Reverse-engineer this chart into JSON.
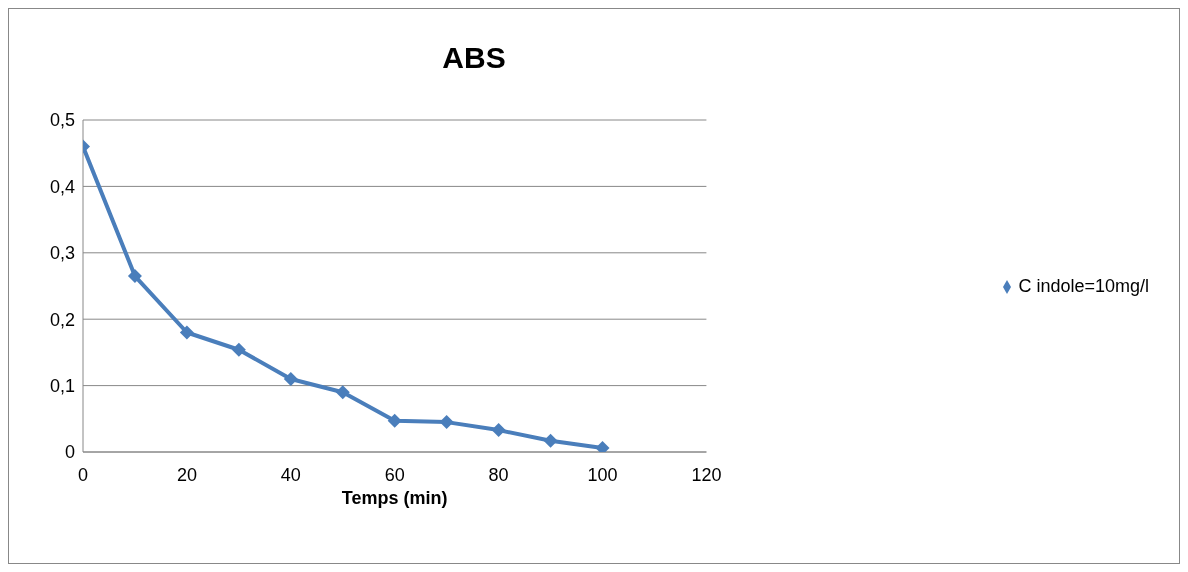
{
  "chart_data": {
    "type": "line",
    "title": "ABS",
    "xlabel": "Temps (min)",
    "x": [
      0,
      10,
      20,
      30,
      40,
      50,
      60,
      70,
      80,
      90,
      100
    ],
    "series": [
      {
        "name": "C indole=10mg/l",
        "color": "#4a7ebb",
        "values": [
          0.46,
          0.265,
          0.18,
          0.154,
          0.11,
          0.09,
          0.047,
          0.045,
          0.033,
          0.017,
          0.006
        ]
      }
    ],
    "xlim": [
      0,
      120
    ],
    "xticks": [
      0,
      20,
      40,
      60,
      80,
      100,
      120
    ],
    "ylim": [
      0,
      0.5
    ],
    "yticks": [
      0,
      {
        "value": 0.1,
        "label": "0,1"
      },
      {
        "value": 0.2,
        "label": "0,2"
      },
      {
        "value": 0.3,
        "label": "0,3"
      },
      {
        "value": 0.4,
        "label": "0,4"
      },
      {
        "value": 0.5,
        "label": "0,5"
      }
    ],
    "grid": "y",
    "legend": "right",
    "marker": "diamond",
    "line_style": "solid"
  }
}
